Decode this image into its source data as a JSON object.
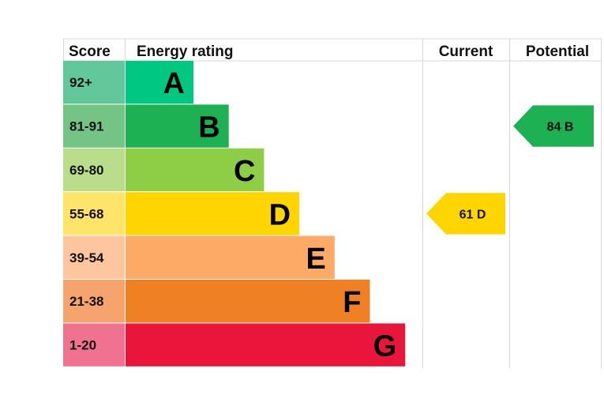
{
  "chart_data": {
    "type": "bar",
    "headers": {
      "score": "Score",
      "rating": "Energy rating",
      "current": "Current",
      "potential": "Potential"
    },
    "bands": [
      {
        "score": "92+",
        "letter": "A",
        "bar_color": "#00c781",
        "score_bg": "#62c89b"
      },
      {
        "score": "81-91",
        "letter": "B",
        "bar_color": "#1eb153",
        "score_bg": "#74c486"
      },
      {
        "score": "69-80",
        "letter": "C",
        "bar_color": "#8dce46",
        "score_bg": "#b9dd8a"
      },
      {
        "score": "55-68",
        "letter": "D",
        "bar_color": "#ffd500",
        "score_bg": "#ffe46a"
      },
      {
        "score": "39-54",
        "letter": "E",
        "bar_color": "#fcaa65",
        "score_bg": "#fdc69e"
      },
      {
        "score": "21-38",
        "letter": "F",
        "bar_color": "#ef8023",
        "score_bg": "#f4a46c"
      },
      {
        "score": "1-20",
        "letter": "G",
        "bar_color": "#e9153b",
        "score_bg": "#ef7290"
      }
    ],
    "current": {
      "value": 61,
      "letter": "D",
      "color": "#ffd500",
      "text_color": "#111111"
    },
    "potential": {
      "value": 84,
      "letter": "B",
      "color": "#1eb153",
      "text_color": "#111111"
    }
  }
}
